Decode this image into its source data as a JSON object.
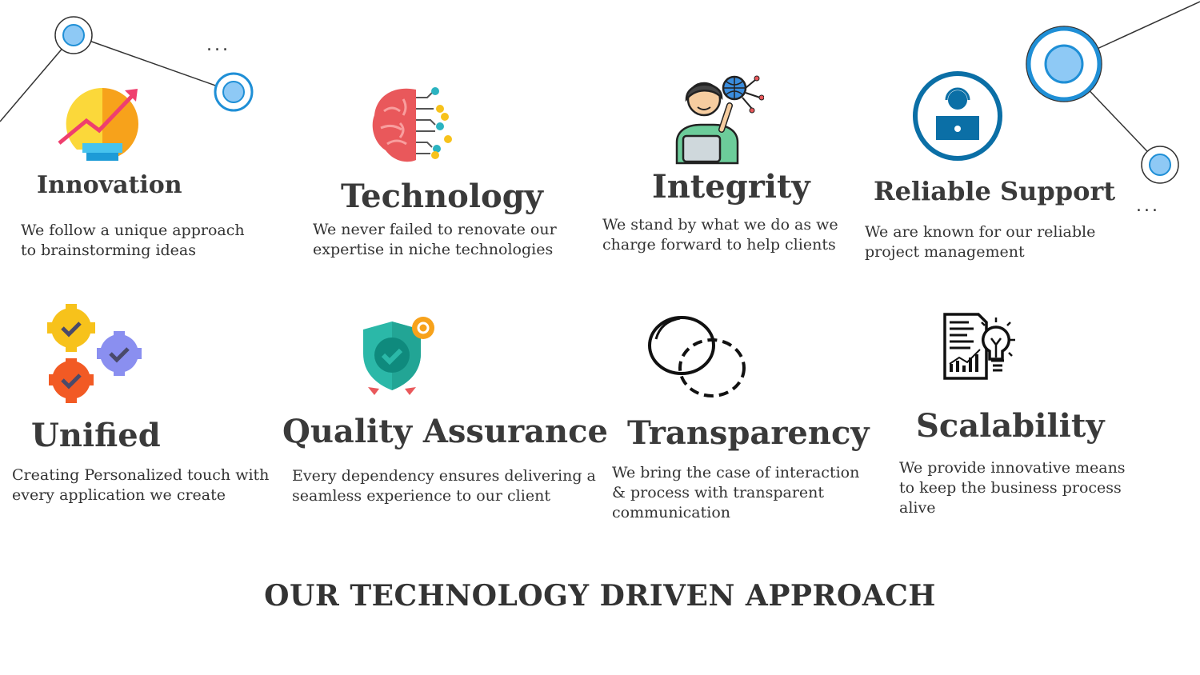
{
  "decor": {
    "dots_left": "...",
    "dots_right": "..."
  },
  "items": [
    {
      "title": "Innovation",
      "icon": "lightbulb-growth-icon",
      "line1": "We follow a unique approach",
      "line2": "to brainstorming ideas"
    },
    {
      "title": "Technology",
      "icon": "brain-circuit-icon",
      "line1": "We never failed to renovate our",
      "line2": "expertise in niche technologies"
    },
    {
      "title": "Integrity",
      "icon": "developer-globe-icon",
      "line1": "We stand by what we do as we",
      "line2": "charge forward to help clients"
    },
    {
      "title": "Reliable Support",
      "icon": "support-agent-icon",
      "line1": "We are known for our reliable",
      "line2": "project management"
    },
    {
      "title": "Unified",
      "icon": "gears-check-icon",
      "line1": "Creating Personalized touch with",
      "line2": "every application we create"
    },
    {
      "title": "Quality Assurance",
      "icon": "shield-check-icon",
      "line1": "Every dependency ensures delivering a",
      "line2": "seamless experience to our client"
    },
    {
      "title": "Transparency",
      "icon": "overlapping-circles-icon",
      "line1": "We bring the case of interaction",
      "line2": "& process with transparent",
      "line3": "communication"
    },
    {
      "title": "Scalability",
      "icon": "report-idea-icon",
      "line1": "We provide innovative means",
      "line2": "to keep the business process",
      "line3": "alive"
    }
  ],
  "footer": {
    "title": "OUR TECHNOLOGY DRIVEN APPROACH"
  },
  "colors": {
    "node_fill": "#8ec9f5",
    "node_ring": "#1f8fd6",
    "text": "#333333"
  }
}
